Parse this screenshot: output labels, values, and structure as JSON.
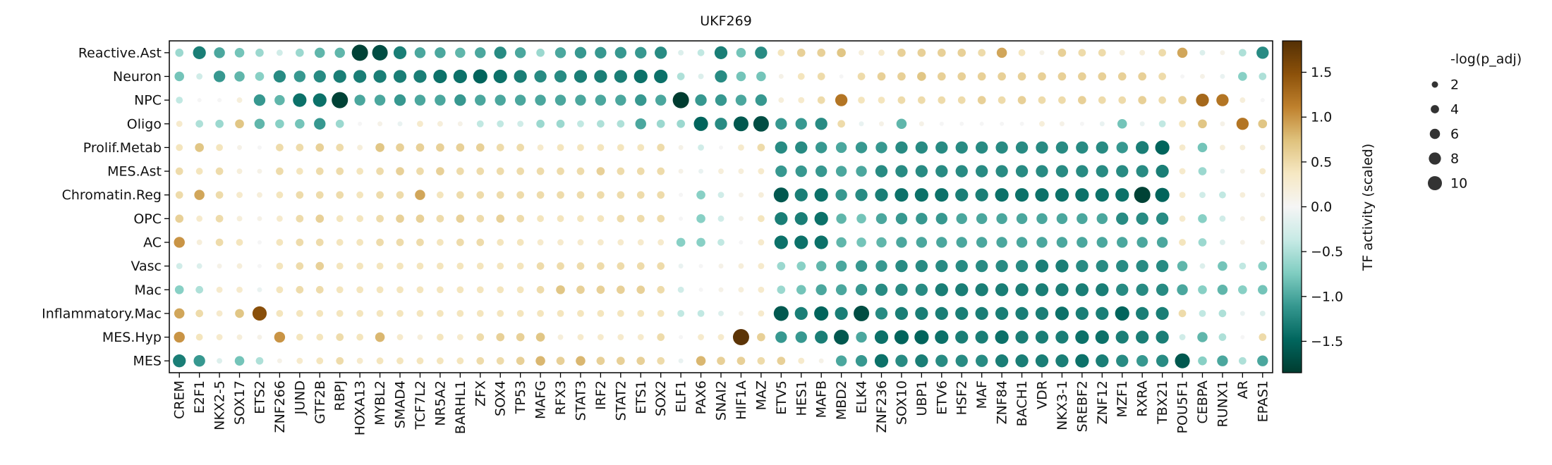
{
  "chart_data": {
    "type": "heatmap",
    "title": "UKF269",
    "rows": [
      "Reactive.Ast",
      "Neuron",
      "NPC",
      "Oligo",
      "Prolif.Metab",
      "MES.Ast",
      "Chromatin.Reg",
      "OPC",
      "AC",
      "Vasc",
      "Mac",
      "Inflammatory.Mac",
      "MES.Hyp",
      "MES"
    ],
    "columns": [
      "CREM",
      "E2F1",
      "NKX2-5",
      "SOX17",
      "ETS2",
      "ZNF266",
      "JUND",
      "GTF2B",
      "RBPJ",
      "HOXA13",
      "MYBL2",
      "SMAD4",
      "TCF7L2",
      "NR5A2",
      "BARHL1",
      "ZFX",
      "SOX4",
      "TP53",
      "MAFG",
      "RFX3",
      "STAT3",
      "IRF2",
      "STAT2",
      "ETS1",
      "SOX2",
      "ELF1",
      "PAX6",
      "SNAI2",
      "HIF1A",
      "MAZ",
      "ETV5",
      "HES1",
      "MAFB",
      "MBD2",
      "ELK4",
      "ZNF236",
      "SOX10",
      "UBP1",
      "ETV6",
      "HSF2",
      "MAF",
      "ZNF84",
      "BACH1",
      "VDR",
      "NKX3-1",
      "SREBF2",
      "ZNF12",
      "MZF1",
      "RXRA",
      "TBX21",
      "POU5F1",
      "CEBPA",
      "RUNX1",
      "AR",
      "EPAS1"
    ],
    "activity": [
      [
        -0.6,
        -1.3,
        -1.0,
        -0.8,
        -0.6,
        -0.3,
        -0.6,
        -0.9,
        -0.9,
        -1.8,
        -1.7,
        -1.3,
        -1.0,
        -1.0,
        -0.9,
        -1.0,
        -1.2,
        -1.0,
        -0.6,
        -1.0,
        -1.1,
        -1.1,
        -1.1,
        -1.1,
        -1.2,
        -0.2,
        -0.4,
        -1.3,
        -0.8,
        -1.2,
        0.4,
        0.6,
        0.6,
        0.7,
        0.2,
        0.3,
        0.6,
        0.6,
        0.6,
        0.6,
        0.5,
        0.9,
        0.4,
        0.1,
        0.6,
        0.5,
        0.5,
        0.2,
        0.2,
        0.5,
        0.9,
        -0.2,
        0.1,
        -0.5,
        -1.2
      ],
      [
        -0.8,
        -0.3,
        -1.1,
        -0.9,
        -0.7,
        -1.2,
        -1.1,
        -1.2,
        -1.3,
        -1.3,
        -1.3,
        -1.3,
        -1.3,
        -1.4,
        -1.4,
        -1.5,
        -1.4,
        -1.3,
        -1.2,
        -1.2,
        -1.3,
        -1.3,
        -1.3,
        -1.4,
        -1.4,
        -0.5,
        -0.2,
        -1.2,
        -0.8,
        -0.8,
        0.1,
        0.4,
        0.5,
        0.0,
        0.5,
        0.6,
        0.6,
        0.7,
        0.6,
        0.6,
        0.6,
        0.6,
        0.6,
        0.6,
        0.6,
        0.6,
        0.6,
        0.6,
        0.6,
        0.5,
        0.0,
        0.1,
        -0.1,
        -0.7,
        -0.5
      ],
      [
        -0.4,
        0.0,
        0.0,
        0.2,
        -1.1,
        -0.9,
        -1.4,
        -1.4,
        -1.8,
        -1.0,
        -1.0,
        -1.1,
        -1.0,
        -1.0,
        -1.1,
        -1.0,
        -1.0,
        -1.0,
        -1.0,
        -1.0,
        -1.0,
        -1.0,
        -1.0,
        -1.1,
        -1.0,
        -1.9,
        -1.1,
        -1.1,
        -1.0,
        -1.1,
        0.2,
        0.3,
        0.5,
        1.2,
        0.4,
        0.4,
        0.5,
        0.5,
        0.5,
        0.5,
        0.6,
        0.5,
        0.6,
        0.5,
        0.5,
        0.6,
        0.5,
        0.5,
        0.6,
        0.5,
        0.6,
        1.3,
        1.2,
        0.2,
        0.0
      ],
      [
        0.3,
        -0.5,
        -0.6,
        0.7,
        -0.9,
        -0.7,
        -0.8,
        -1.1,
        -0.6,
        0.0,
        0.1,
        -0.1,
        0.3,
        0.2,
        0.1,
        -0.4,
        -0.4,
        -0.3,
        -0.6,
        -0.6,
        -0.4,
        -0.5,
        -0.5,
        -1.0,
        -0.6,
        -0.6,
        -1.5,
        -1.2,
        -1.6,
        -1.7,
        -1.1,
        -1.1,
        -1.2,
        0.5,
        -0.1,
        0.1,
        -0.9,
        0.1,
        0.0,
        0.0,
        0.0,
        0.0,
        0.0,
        0.2,
        0.1,
        0.0,
        -0.1,
        -0.8,
        -0.1,
        -0.4,
        0.4,
        0.7,
        0.1,
        1.2,
        0.7
      ],
      [
        0.4,
        0.7,
        0.4,
        0.1,
        0.0,
        0.5,
        0.5,
        0.6,
        0.5,
        0.2,
        0.7,
        0.6,
        0.6,
        0.6,
        0.6,
        0.6,
        0.5,
        0.5,
        0.3,
        0.4,
        0.4,
        0.4,
        0.4,
        0.4,
        0.5,
        0.1,
        -0.3,
        0.0,
        0.3,
        0.5,
        -1.2,
        -1.2,
        -1.1,
        -1.0,
        -1.1,
        -1.1,
        -1.2,
        -1.2,
        -1.2,
        -1.2,
        -1.2,
        -1.2,
        -1.2,
        -1.2,
        -1.2,
        -1.2,
        -1.2,
        -1.1,
        -1.3,
        -1.5,
        0.3,
        -0.8,
        0.2,
        0.2,
        0.2
      ],
      [
        0.5,
        0.4,
        0.5,
        0.2,
        0.1,
        0.5,
        0.4,
        0.5,
        0.5,
        0.4,
        0.5,
        0.6,
        0.5,
        0.6,
        0.5,
        0.5,
        0.5,
        0.5,
        0.5,
        0.5,
        0.5,
        0.6,
        0.5,
        0.5,
        0.5,
        0.1,
        -0.1,
        0.2,
        0.2,
        0.3,
        -1.1,
        -1.1,
        -1.1,
        -1.0,
        -1.0,
        -1.2,
        -1.2,
        -1.2,
        -1.2,
        -1.2,
        -1.2,
        -1.2,
        -1.2,
        -1.2,
        -1.2,
        -1.2,
        -1.2,
        -1.2,
        -1.2,
        -1.3,
        0.3,
        -0.6,
        -0.1,
        0.1,
        0.3
      ],
      [
        0.5,
        0.9,
        0.5,
        0.3,
        0.2,
        0.4,
        0.5,
        0.5,
        0.5,
        0.4,
        0.5,
        0.5,
        0.9,
        0.4,
        0.5,
        0.5,
        0.5,
        0.5,
        0.5,
        0.5,
        0.5,
        0.5,
        0.5,
        0.5,
        0.5,
        0.0,
        -0.7,
        -0.3,
        0.1,
        0.2,
        -1.6,
        -1.3,
        -1.4,
        -1.1,
        -1.2,
        -1.3,
        -1.4,
        -1.4,
        -1.4,
        -1.3,
        -1.3,
        -1.4,
        -1.4,
        -1.4,
        -1.4,
        -1.4,
        -1.4,
        -1.4,
        -1.8,
        -1.5,
        0.3,
        -0.3,
        -0.4,
        0.2,
        0.1
      ],
      [
        0.6,
        0.3,
        0.5,
        0.2,
        0.1,
        0.3,
        0.5,
        0.6,
        0.4,
        0.4,
        0.5,
        0.6,
        0.6,
        0.5,
        0.6,
        0.5,
        0.6,
        0.5,
        0.4,
        0.4,
        0.4,
        0.4,
        0.5,
        0.5,
        0.5,
        0.0,
        -0.7,
        -0.3,
        0.1,
        0.4,
        -1.3,
        -1.3,
        -1.4,
        -0.9,
        -0.8,
        -1.0,
        -1.1,
        -1.1,
        -1.1,
        -1.0,
        -1.0,
        -1.0,
        -1.0,
        -1.0,
        -1.0,
        -1.0,
        -1.0,
        -1.2,
        -1.2,
        -1.2,
        0.3,
        -0.7,
        -0.3,
        0.1,
        0.2
      ],
      [
        1.0,
        0.2,
        0.5,
        0.4,
        0.0,
        0.4,
        0.5,
        0.5,
        0.4,
        0.4,
        0.5,
        0.5,
        0.5,
        0.4,
        0.5,
        0.5,
        0.4,
        0.4,
        0.3,
        0.3,
        0.3,
        0.3,
        0.3,
        0.3,
        0.3,
        -0.7,
        -0.7,
        -0.4,
        0.0,
        0.3,
        -1.4,
        -1.4,
        -1.4,
        -0.9,
        -0.8,
        -0.9,
        -1.0,
        -1.0,
        -1.0,
        -1.0,
        -1.0,
        -1.0,
        -1.0,
        -1.0,
        -1.0,
        -1.0,
        -1.0,
        -1.0,
        -1.0,
        -1.0,
        0.4,
        -0.6,
        -0.2,
        0.1,
        0.1
      ],
      [
        -0.3,
        -0.2,
        0.1,
        0.2,
        0.0,
        0.4,
        0.5,
        0.6,
        0.4,
        0.4,
        0.4,
        0.4,
        0.4,
        0.4,
        0.4,
        0.4,
        0.4,
        0.4,
        0.5,
        0.5,
        0.5,
        0.5,
        0.5,
        0.5,
        0.5,
        -0.1,
        0.0,
        0.1,
        0.2,
        0.3,
        -0.6,
        -0.7,
        -0.9,
        -1.0,
        -1.1,
        -1.1,
        -1.2,
        -1.2,
        -1.2,
        -1.2,
        -1.2,
        -1.2,
        -1.2,
        -1.3,
        -1.3,
        -1.2,
        -1.2,
        -1.2,
        -1.2,
        -1.2,
        -0.9,
        -0.2,
        -0.8,
        -0.4,
        -0.7
      ],
      [
        -0.7,
        -0.5,
        0.3,
        0.3,
        -0.1,
        0.4,
        0.5,
        0.5,
        0.4,
        0.4,
        0.4,
        0.4,
        0.4,
        0.4,
        0.4,
        0.4,
        0.4,
        0.4,
        0.5,
        0.7,
        0.6,
        0.6,
        0.6,
        0.6,
        0.5,
        -0.3,
        0.0,
        0.1,
        0.2,
        0.3,
        -0.6,
        -0.8,
        -1.0,
        -1.0,
        -1.1,
        -1.2,
        -1.2,
        -1.2,
        -1.3,
        -1.3,
        -1.3,
        -1.3,
        -1.3,
        -1.3,
        -1.3,
        -1.3,
        -1.3,
        -1.2,
        -1.2,
        -1.2,
        -1.0,
        -0.7,
        -0.9,
        -0.7,
        -0.8
      ],
      [
        0.9,
        0.5,
        0.3,
        0.7,
        1.5,
        0.4,
        0.4,
        0.4,
        0.4,
        0.4,
        0.4,
        0.4,
        0.4,
        0.4,
        0.4,
        0.4,
        0.4,
        0.4,
        0.4,
        0.4,
        0.4,
        0.4,
        0.4,
        0.4,
        0.4,
        -0.4,
        -0.4,
        -0.2,
        0.1,
        0.3,
        -1.6,
        -1.3,
        -1.5,
        -1.3,
        -1.7,
        -1.2,
        -1.3,
        -1.3,
        -1.3,
        -1.3,
        -1.3,
        -1.3,
        -1.3,
        -1.3,
        -1.4,
        -1.3,
        -1.3,
        -1.5,
        -1.3,
        -1.3,
        0.5,
        -0.4,
        -0.5,
        -0.1,
        -0.2
      ],
      [
        1.0,
        0.4,
        0.3,
        0.2,
        0.1,
        1.0,
        0.4,
        0.4,
        0.5,
        0.4,
        0.8,
        0.3,
        0.2,
        0.4,
        0.3,
        0.5,
        0.6,
        0.6,
        0.7,
        0.2,
        0.3,
        0.3,
        0.3,
        0.3,
        0.5,
        0.0,
        0.3,
        0.3,
        1.8,
        0.6,
        -1.1,
        -1.1,
        -1.3,
        -1.6,
        -1.0,
        -1.4,
        -1.5,
        -1.5,
        -1.4,
        -1.3,
        -1.3,
        -1.4,
        -1.3,
        -1.3,
        -1.3,
        -1.4,
        -1.4,
        -1.3,
        -1.3,
        -1.3,
        -0.3,
        -0.9,
        -0.5,
        0.0,
        0.5
      ],
      [
        -1.3,
        -1.1,
        -0.2,
        -0.8,
        -0.5,
        0.1,
        0.3,
        0.4,
        0.5,
        0.3,
        0.4,
        0.4,
        0.4,
        0.4,
        0.4,
        0.5,
        0.5,
        0.6,
        0.8,
        0.6,
        0.8,
        0.6,
        0.6,
        0.6,
        0.5,
        -0.1,
        0.8,
        0.6,
        0.6,
        0.5,
        0.6,
        0.3,
        0.1,
        -1.0,
        -1.1,
        -1.4,
        -1.2,
        -1.3,
        -1.2,
        -1.2,
        -1.2,
        -1.3,
        -1.3,
        -1.3,
        -1.3,
        -1.4,
        -1.3,
        -1.2,
        -1.1,
        -1.2,
        -1.6,
        -0.7,
        -1.0,
        -0.5,
        -1.0
      ]
    ],
    "colorbar": {
      "label": "TF activity (scaled)",
      "ticks": [
        1.5,
        1.0,
        0.5,
        0.0,
        -0.5,
        -1.0,
        -1.5
      ],
      "tick_labels": [
        "1.5",
        "1.0",
        "0.5",
        "0.0",
        "−0.5",
        "−1.0",
        "−1.5"
      ],
      "range": [
        -1.85,
        1.85
      ],
      "colors": [
        "#003c30",
        "#01665e",
        "#35978f",
        "#80cdc1",
        "#c7eae5",
        "#f5f5f5",
        "#f6e8c3",
        "#dfc27d",
        "#bf812d",
        "#8c510a",
        "#543005"
      ]
    },
    "size_legend": {
      "title": "-log(p_adj)",
      "values": [
        2,
        4,
        6,
        8,
        10
      ],
      "labels": [
        "2",
        "4",
        "6",
        "8",
        "10"
      ]
    }
  }
}
